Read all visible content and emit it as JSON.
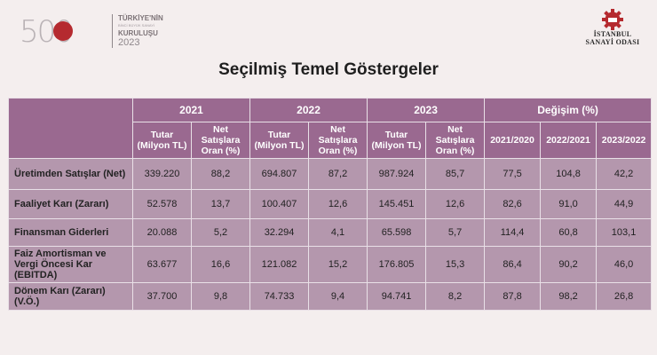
{
  "branding": {
    "anniversary_number": "500",
    "anniversary_line1": "TÜRKİYE'NİN",
    "anniversary_line2": "BİNCİ BÜYÜK SANAYİ",
    "anniversary_line3": "KURULUŞU",
    "anniversary_year": "2023",
    "org_line1": "İSTANBUL",
    "org_line2": "SANAYİ ODASI"
  },
  "page_title": "Seçilmiş Temel Göstergeler",
  "table": {
    "years": [
      "2021",
      "2022",
      "2023"
    ],
    "change_header": "Değişim (%)",
    "sub_amount": "Tutar (Milyon TL)",
    "sub_ratio": "Net Satışlara Oran (%)",
    "change_cols": [
      "2021/2020",
      "2022/2021",
      "2023/2022"
    ],
    "rows": [
      {
        "label": "Üretimden Satışlar (Net)",
        "values": [
          "339.220",
          "88,2",
          "694.807",
          "87,2",
          "987.924",
          "85,7",
          "77,5",
          "104,8",
          "42,2"
        ]
      },
      {
        "label": "Faaliyet Karı (Zararı)",
        "values": [
          "52.578",
          "13,7",
          "100.407",
          "12,6",
          "145.451",
          "12,6",
          "82,6",
          "91,0",
          "44,9"
        ]
      },
      {
        "label": "Finansman Giderleri",
        "values": [
          "20.088",
          "5,2",
          "32.294",
          "4,1",
          "65.598",
          "5,7",
          "114,4",
          "60,8",
          "103,1"
        ]
      },
      {
        "label": "Faiz Amortisman ve Vergi Öncesi Kar (EBITDA)",
        "values": [
          "63.677",
          "16,6",
          "121.082",
          "15,2",
          "176.805",
          "15,3",
          "86,4",
          "90,2",
          "46,0"
        ]
      },
      {
        "label": "Dönem Karı (Zararı) (V.Ö.)",
        "values": [
          "37.700",
          "9,8",
          "74.733",
          "9,4",
          "94.741",
          "8,2",
          "87,8",
          "98,2",
          "26,8"
        ]
      }
    ]
  }
}
